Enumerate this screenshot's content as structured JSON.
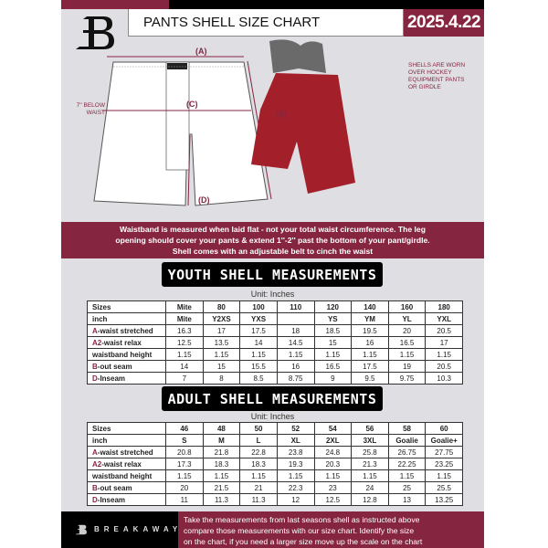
{
  "header": {
    "title": "PANTS SHELL SIZE CHART",
    "date": "2025.4.22"
  },
  "diagram": {
    "label_a": "(A)",
    "label_b": "(B)",
    "label_c": "(C)",
    "label_d": "(D)",
    "c_note": [
      "7'' BELOW",
      "WAIST"
    ],
    "shell_note": [
      "SHELLS ARE WORN",
      "OVER HOCKEY",
      "EQUIPMENT PANTS",
      "OR GIRDLE"
    ]
  },
  "banner": [
    "Waistband is measured when laid flat - not your total waist circumference. The leg",
    "opening should cover your pants & extend 1''-2'' past the bottom of your pant/girdle.",
    "Shell comes with an adjustable belt to cinch the waist"
  ],
  "youth": {
    "title": "YOUTH SHELL MEASUREMENTS",
    "unit": "Unit: Inches",
    "rows": [
      {
        "prefix": "",
        "label": "Sizes",
        "values": [
          "Mite",
          "80",
          "100",
          "110",
          "120",
          "140",
          "160",
          "180"
        ]
      },
      {
        "prefix": "",
        "label": "inch",
        "values": [
          "Mite",
          "Y2XS",
          "YXS",
          "",
          "YS",
          "YM",
          "YL",
          "YXL"
        ]
      },
      {
        "prefix": "A",
        "label": "-waist stretched",
        "values": [
          "16.3",
          "17",
          "17.5",
          "18",
          "18.5",
          "19.5",
          "20",
          "20.5"
        ]
      },
      {
        "prefix": "A2",
        "label": "-waist relax",
        "values": [
          "12.5",
          "13.5",
          "14",
          "14.5",
          "15",
          "16",
          "16.5",
          "17"
        ]
      },
      {
        "prefix": "",
        "label": "waistband height",
        "values": [
          "1.15",
          "1.15",
          "1.15",
          "1.15",
          "1.15",
          "1.15",
          "1.15",
          "1.15"
        ]
      },
      {
        "prefix": "B",
        "label": "-out seam",
        "values": [
          "14",
          "15",
          "15.5",
          "16",
          "16.5",
          "17.5",
          "19",
          "20.5"
        ]
      },
      {
        "prefix": "D",
        "label": "-Inseam",
        "values": [
          "7",
          "8",
          "8.5",
          "8.75",
          "9",
          "9.5",
          "9.75",
          "10.3"
        ]
      }
    ]
  },
  "adult": {
    "title": "ADULT SHELL MEASUREMENTS",
    "unit": "Unit: Inches",
    "rows": [
      {
        "prefix": "",
        "label": "Sizes",
        "values": [
          "46",
          "48",
          "50",
          "52",
          "54",
          "56",
          "58",
          "60"
        ]
      },
      {
        "prefix": "",
        "label": "inch",
        "values": [
          "S",
          "M",
          "L",
          "XL",
          "2XL",
          "3XL",
          "Goalie",
          "Goalie+"
        ]
      },
      {
        "prefix": "A",
        "label": "-waist stretched",
        "values": [
          "20.8",
          "21.8",
          "22.8",
          "23.8",
          "24.8",
          "25.8",
          "26.75",
          "27.75"
        ]
      },
      {
        "prefix": "A2",
        "label": "-waist relax",
        "values": [
          "17.3",
          "18.3",
          "18.3",
          "19.3",
          "20.3",
          "21.3",
          "22.25",
          "23.25"
        ]
      },
      {
        "prefix": "",
        "label": "waistband height",
        "values": [
          "1.15",
          "1.15",
          "1.15",
          "1.15",
          "1.15",
          "1.15",
          "1.15",
          "1.15"
        ]
      },
      {
        "prefix": "B",
        "label": "-out seam",
        "values": [
          "20",
          "21.5",
          "21",
          "22.3",
          "23",
          "24",
          "25",
          "25.5"
        ]
      },
      {
        "prefix": "D",
        "label": "-Inseam",
        "values": [
          "11",
          "11.3",
          "11.3",
          "12",
          "12.5",
          "12.8",
          "13",
          "13.25"
        ]
      }
    ]
  },
  "footer": {
    "brand": "BREAKAWAY",
    "text": [
      "Take the measurements from last seasons shell as instructed above",
      "compare those measurements  with our size chart. Identify the size",
      "on the chart, if you need a larger size move up the scale on the chart"
    ]
  },
  "colors": {
    "accent": "#862540",
    "background": "#dfdfe3",
    "dark": "#000000"
  }
}
